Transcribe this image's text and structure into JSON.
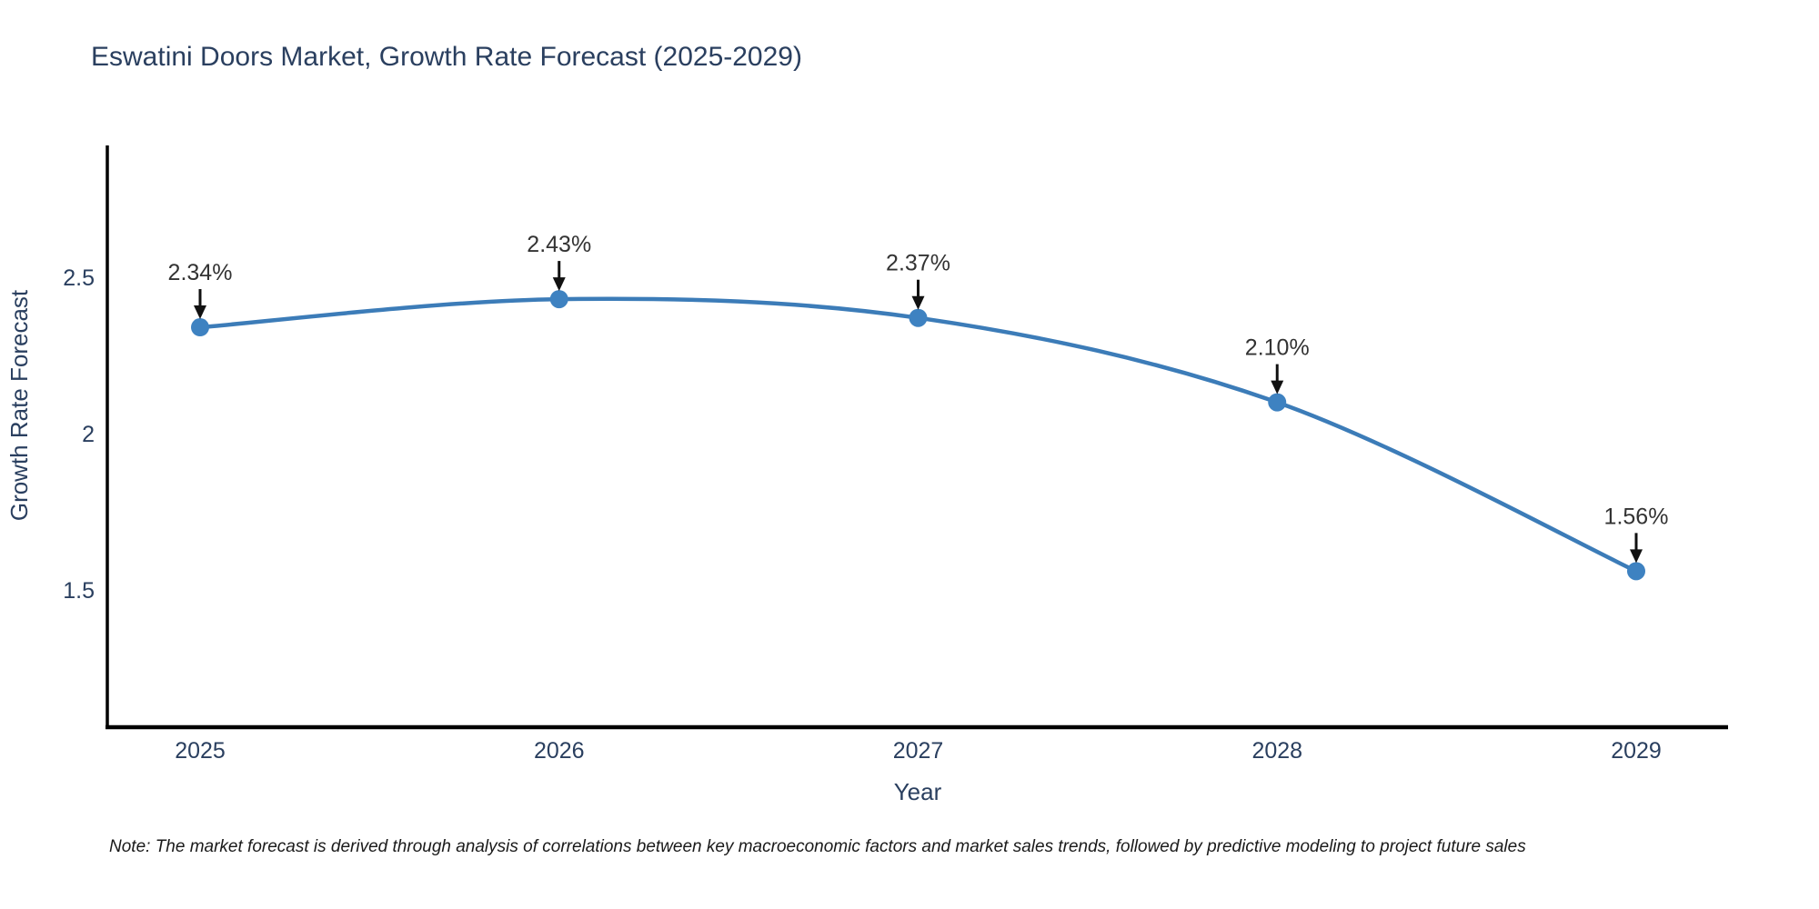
{
  "title": "Eswatini Doors Market, Growth Rate Forecast (2025-2029)",
  "note": "Note: The market forecast is derived through analysis of correlations between key macroeconomic factors and market sales trends, followed by predictive modeling to project future sales",
  "chart_data": {
    "type": "line",
    "line_shape": "spline",
    "categories": [
      "2025",
      "2026",
      "2027",
      "2028",
      "2029"
    ],
    "values": [
      2.34,
      2.43,
      2.37,
      2.1,
      1.56
    ],
    "point_labels": [
      "2.34%",
      "2.43%",
      "2.37%",
      "2.10%",
      "1.56%"
    ],
    "title": "Eswatini Doors Market, Growth Rate Forecast (2025-2029)",
    "xlabel": "Year",
    "ylabel": "Growth Rate Forecast",
    "yticks": [
      2.5,
      2.0,
      1.5
    ],
    "ytick_labels": [
      "2.5",
      "2",
      "1.5"
    ],
    "ylim": [
      1.1,
      2.9
    ],
    "grid": false,
    "legend": false,
    "colors": {
      "line": "#3c7cb8",
      "marker": "#3e82c1",
      "axis": "#000000",
      "axis_text": "#2a3f5f",
      "annotation_text": "#333333",
      "arrow": "#111111",
      "title_text": "#2a3f5f"
    }
  }
}
